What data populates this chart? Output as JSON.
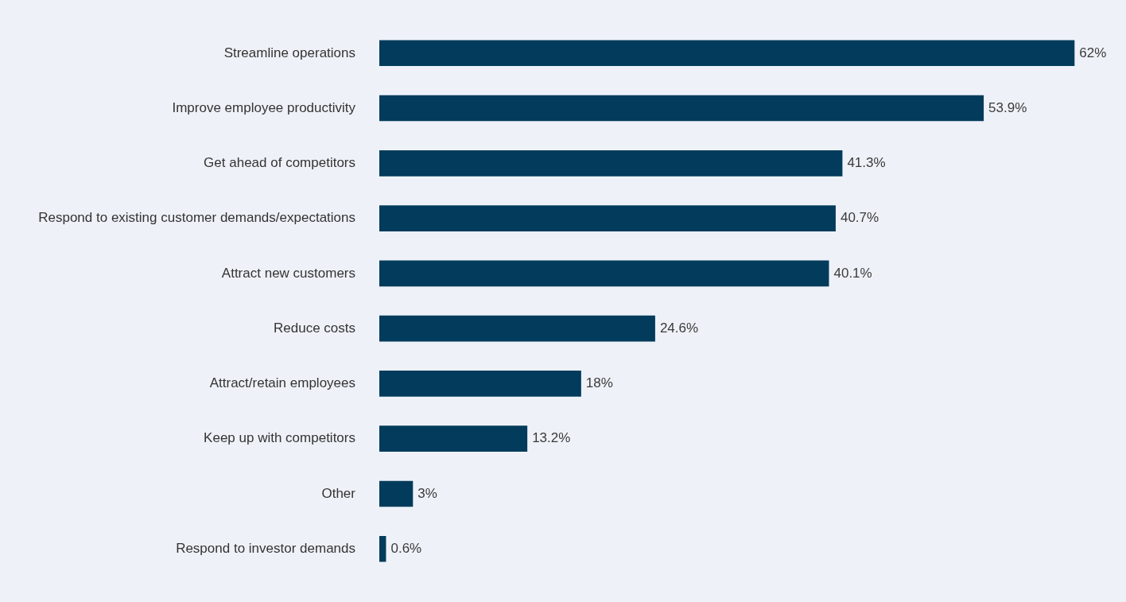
{
  "chart_data": {
    "type": "bar",
    "orientation": "horizontal",
    "categories": [
      "Streamline operations",
      "Improve employee productivity",
      "Get ahead of competitors",
      "Respond to existing customer demands/expectations",
      "Attract new customers",
      "Reduce costs",
      "Attract/retain employees",
      "Keep up with competitors",
      "Other",
      "Respond to investor demands"
    ],
    "values": [
      62,
      53.9,
      41.3,
      40.7,
      40.1,
      24.6,
      18,
      13.2,
      3,
      0.6
    ],
    "value_labels": [
      "62%",
      "53.9%",
      "41.3%",
      "40.7%",
      "40.1%",
      "24.6%",
      "18%",
      "13.2%",
      "3%",
      "0.6%"
    ],
    "color": "#023b5b",
    "grid": false,
    "legend": false
  }
}
